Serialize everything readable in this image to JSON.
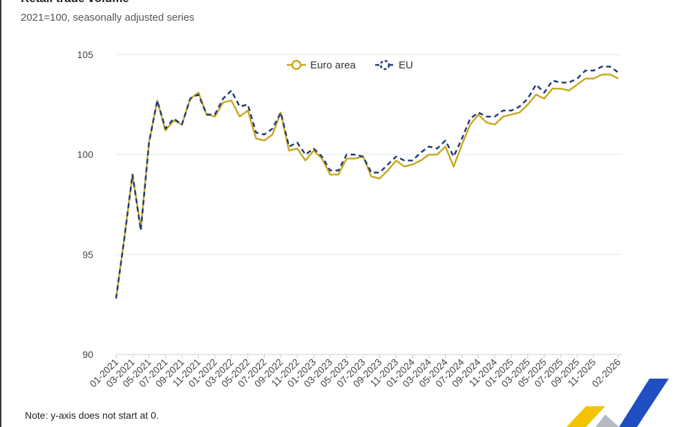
{
  "header": {
    "title": "Retail trade volume",
    "subtitle": "2021=100, seasonally adjusted series"
  },
  "note": "Note: y-axis does not start at 0.",
  "colors": {
    "euro_area": "#c9a820",
    "eu": "#1f3a7a",
    "grid": "#e3e6ea"
  },
  "logo": {
    "icon": "eurostat-logo"
  },
  "chart_data": {
    "type": "line",
    "title": "Retail trade volume",
    "subtitle": "2021=100, seasonally adjusted series",
    "ylim": [
      90,
      105
    ],
    "yticks": [
      90,
      95,
      100,
      105
    ],
    "grid": true,
    "legend_placement": "top-center",
    "x": [
      "01-2021",
      "02-2021",
      "03-2021",
      "04-2021",
      "05-2021",
      "06-2021",
      "07-2021",
      "08-2021",
      "09-2021",
      "10-2021",
      "11-2021",
      "12-2021",
      "01-2022",
      "02-2022",
      "03-2022",
      "04-2022",
      "05-2022",
      "06-2022",
      "07-2022",
      "08-2022",
      "09-2022",
      "10-2022",
      "11-2022",
      "12-2022",
      "01-2023",
      "02-2023",
      "03-2023",
      "04-2023",
      "05-2023",
      "06-2023",
      "07-2023",
      "08-2023",
      "09-2023",
      "10-2023",
      "11-2023",
      "12-2023",
      "01-2024",
      "02-2024",
      "03-2024",
      "04-2024",
      "05-2024",
      "06-2024",
      "07-2024",
      "08-2024",
      "09-2024",
      "10-2024",
      "11-2024",
      "12-2024",
      "01-2025",
      "02-2025",
      "03-2025",
      "04-2025",
      "05-2025",
      "06-2025",
      "07-2025",
      "08-2025",
      "09-2025",
      "10-2025",
      "11-2025",
      "12-2025",
      "01-2026",
      "02-2026"
    ],
    "xtick_labels": [
      "01-2021",
      "03-2021",
      "05-2021",
      "07-2021",
      "09-2021",
      "11-2021",
      "01-2022",
      "03-2022",
      "05-2022",
      "07-2022",
      "09-2022",
      "11-2022",
      "01-2023",
      "03-2023",
      "05-2023",
      "07-2023",
      "09-2023",
      "11-2023",
      "01-2024",
      "03-2024",
      "05-2024",
      "07-2024",
      "09-2024",
      "11-2024",
      "01-2025",
      "03-2025",
      "05-2025",
      "07-2025",
      "09-2025",
      "11-2025",
      "02-2026"
    ],
    "series": [
      {
        "name": "Euro area",
        "style": "solid",
        "values": [
          92.8,
          95.8,
          99.0,
          96.3,
          100.6,
          102.7,
          101.2,
          101.7,
          101.5,
          102.8,
          103.1,
          102.0,
          101.9,
          102.6,
          102.7,
          101.9,
          102.2,
          100.8,
          100.7,
          101.0,
          102.1,
          100.2,
          100.3,
          99.7,
          100.2,
          99.8,
          99.0,
          99.0,
          99.8,
          99.8,
          99.9,
          98.9,
          98.8,
          99.2,
          99.7,
          99.4,
          99.5,
          99.7,
          100.0,
          100.0,
          100.4,
          99.4,
          100.5,
          101.5,
          102.0,
          101.6,
          101.5,
          101.9,
          102.0,
          102.1,
          102.5,
          103.0,
          102.8,
          103.3,
          103.3,
          103.2,
          103.5,
          103.8,
          103.8,
          104.0,
          104.0,
          103.8
        ]
      },
      {
        "name": "EU",
        "style": "dashed",
        "values": [
          92.8,
          95.8,
          99.0,
          96.2,
          100.6,
          102.7,
          101.3,
          101.8,
          101.5,
          102.8,
          103.0,
          102.0,
          102.0,
          102.8,
          103.2,
          102.4,
          102.5,
          101.1,
          101.0,
          101.3,
          102.1,
          100.4,
          100.6,
          100.0,
          100.3,
          99.9,
          99.2,
          99.2,
          100.0,
          100.0,
          99.9,
          99.1,
          99.1,
          99.5,
          99.9,
          99.7,
          99.7,
          100.1,
          100.4,
          100.3,
          100.7,
          99.9,
          100.8,
          101.8,
          102.1,
          101.9,
          101.9,
          102.2,
          102.2,
          102.4,
          102.8,
          103.5,
          103.1,
          103.7,
          103.6,
          103.6,
          103.8,
          104.2,
          104.2,
          104.4,
          104.4,
          104.1
        ]
      }
    ]
  }
}
